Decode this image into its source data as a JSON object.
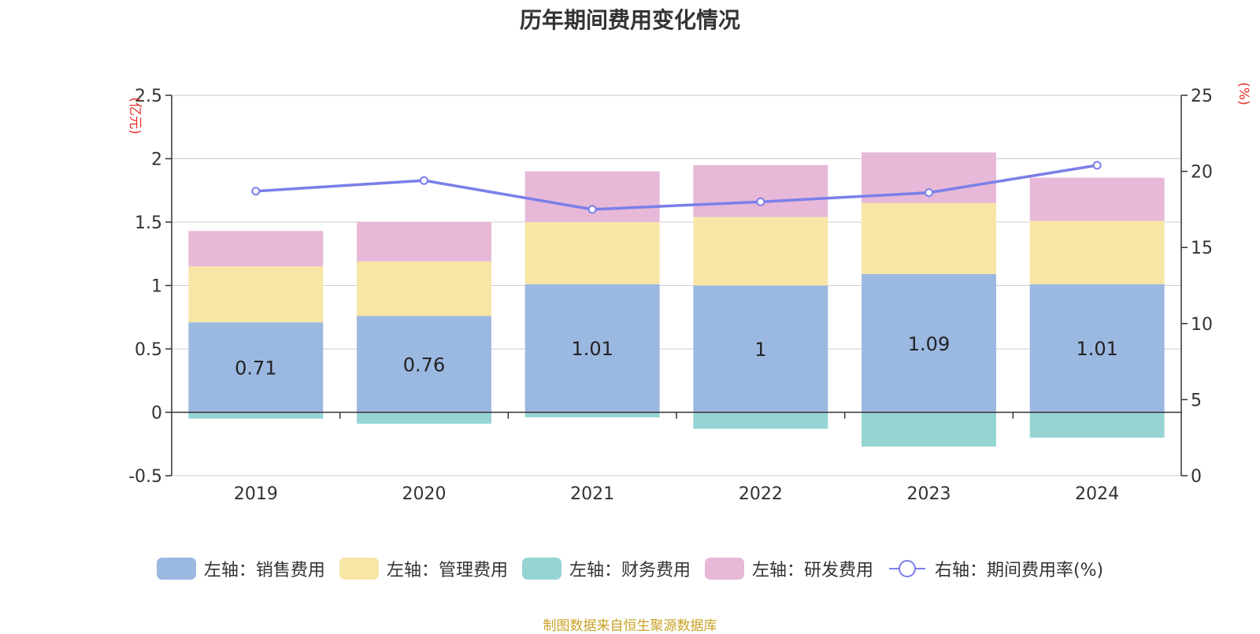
{
  "chart_data": {
    "type": "bar",
    "title": "历年期间费用变化情况",
    "left_axis_unit": "(亿元)",
    "right_axis_unit": "(%)",
    "categories": [
      "2019",
      "2020",
      "2021",
      "2022",
      "2023",
      "2024"
    ],
    "left_ylim": [
      -0.5,
      2.5
    ],
    "left_ticks": [
      "2.5",
      "2",
      "1.5",
      "1",
      "0.5",
      "0",
      "-0.5"
    ],
    "right_ylim": [
      0,
      25
    ],
    "right_ticks": [
      "25",
      "20",
      "15",
      "10",
      "5",
      "0"
    ],
    "series": [
      {
        "name": "左轴：销售费用",
        "kind": "bar",
        "stack": "cost",
        "color": "#9bb8e1",
        "values": [
          0.71,
          0.76,
          1.01,
          1.0,
          1.09,
          1.01
        ],
        "labels": [
          "0.71",
          "0.76",
          "1.01",
          "1",
          "1.09",
          "1.01"
        ]
      },
      {
        "name": "左轴：管理费用",
        "kind": "bar",
        "stack": "cost",
        "color": "#f8e6a7",
        "values": [
          0.44,
          0.43,
          0.49,
          0.54,
          0.56,
          0.5
        ]
      },
      {
        "name": "左轴：财务费用",
        "kind": "bar",
        "stack": "cost",
        "color": "#96d4d3",
        "values": [
          -0.05,
          -0.09,
          -0.04,
          -0.13,
          -0.27,
          -0.2
        ]
      },
      {
        "name": "左轴：研发费用",
        "kind": "bar",
        "stack": "cost",
        "color": "#e7b8d8",
        "values": [
          0.28,
          0.31,
          0.4,
          0.41,
          0.4,
          0.34
        ]
      },
      {
        "name": "右轴：期间费用率(%)",
        "kind": "line",
        "axis": "right",
        "color": "#7b7fe8",
        "values": [
          18.7,
          19.4,
          17.5,
          18.0,
          18.6,
          20.4
        ]
      }
    ],
    "grid": true,
    "legend_position": "bottom",
    "source": "制图数据来自恒生聚源数据库"
  }
}
